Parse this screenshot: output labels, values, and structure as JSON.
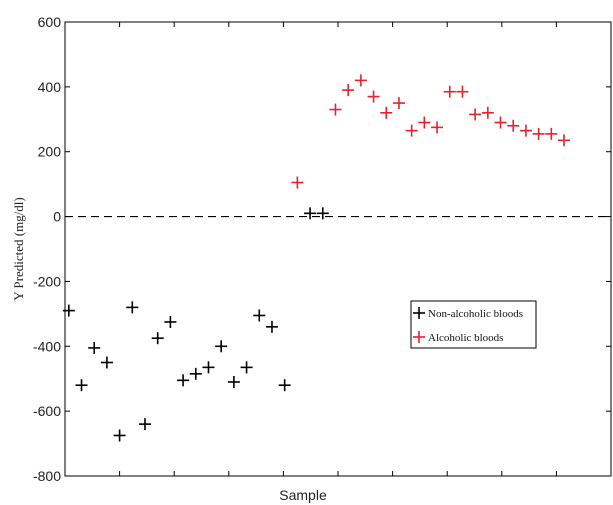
{
  "chart_data": {
    "type": "scatter",
    "xlabel": "Sample",
    "ylabel": "Y Predicted (mg/dl)",
    "xlim": [
      0,
      43
    ],
    "ylim": [
      -800,
      600
    ],
    "yticks": [
      "600",
      "400",
      "200",
      "0",
      "-200",
      "-400",
      "-600",
      "-800"
    ],
    "ytick_values": [
      600,
      400,
      200,
      0,
      -200,
      -400,
      -600,
      -800
    ],
    "xticks": [
      0,
      4.3,
      8.6,
      12.9,
      17.2,
      21.5,
      25.8,
      30.1,
      34.4,
      38.7,
      43
    ],
    "reference_line": {
      "y": 0,
      "style": "dashed"
    },
    "grid": false,
    "legend_position": "center-right",
    "series": [
      {
        "name": "Non-alcoholic bloods",
        "color": "#000000",
        "marker": "plus",
        "x": [
          0.3,
          1.3,
          2.3,
          3.3,
          4.3,
          5.3,
          6.3,
          7.3,
          8.3,
          9.3,
          10.3,
          11.3,
          12.3,
          13.3,
          14.3,
          15.3,
          16.3,
          17.3,
          18.3,
          19.3,
          20.3,
          21.3,
          22.3
        ],
        "values": [
          -290,
          -520,
          -405,
          -450,
          -675,
          -280,
          -640,
          -375,
          -325,
          -505,
          -485,
          -465,
          -400,
          -510,
          -465,
          -305,
          -340,
          -520,
          null,
          10,
          10,
          null,
          null
        ]
      },
      {
        "name": "Alcoholic bloods",
        "color": "#e8202a",
        "marker": "plus",
        "x": [
          18.3,
          21.3,
          22.3,
          23.3,
          24.3,
          25.3,
          26.3,
          27.3,
          28.3,
          29.3,
          30.3,
          31.3,
          32.3,
          33.3,
          34.3,
          35.3,
          36.3,
          37.3,
          38.3,
          39.3
        ],
        "values": [
          105,
          330,
          390,
          420,
          370,
          320,
          350,
          265,
          290,
          275,
          385,
          385,
          315,
          320,
          290,
          280,
          265,
          255,
          255,
          235
        ]
      }
    ]
  }
}
